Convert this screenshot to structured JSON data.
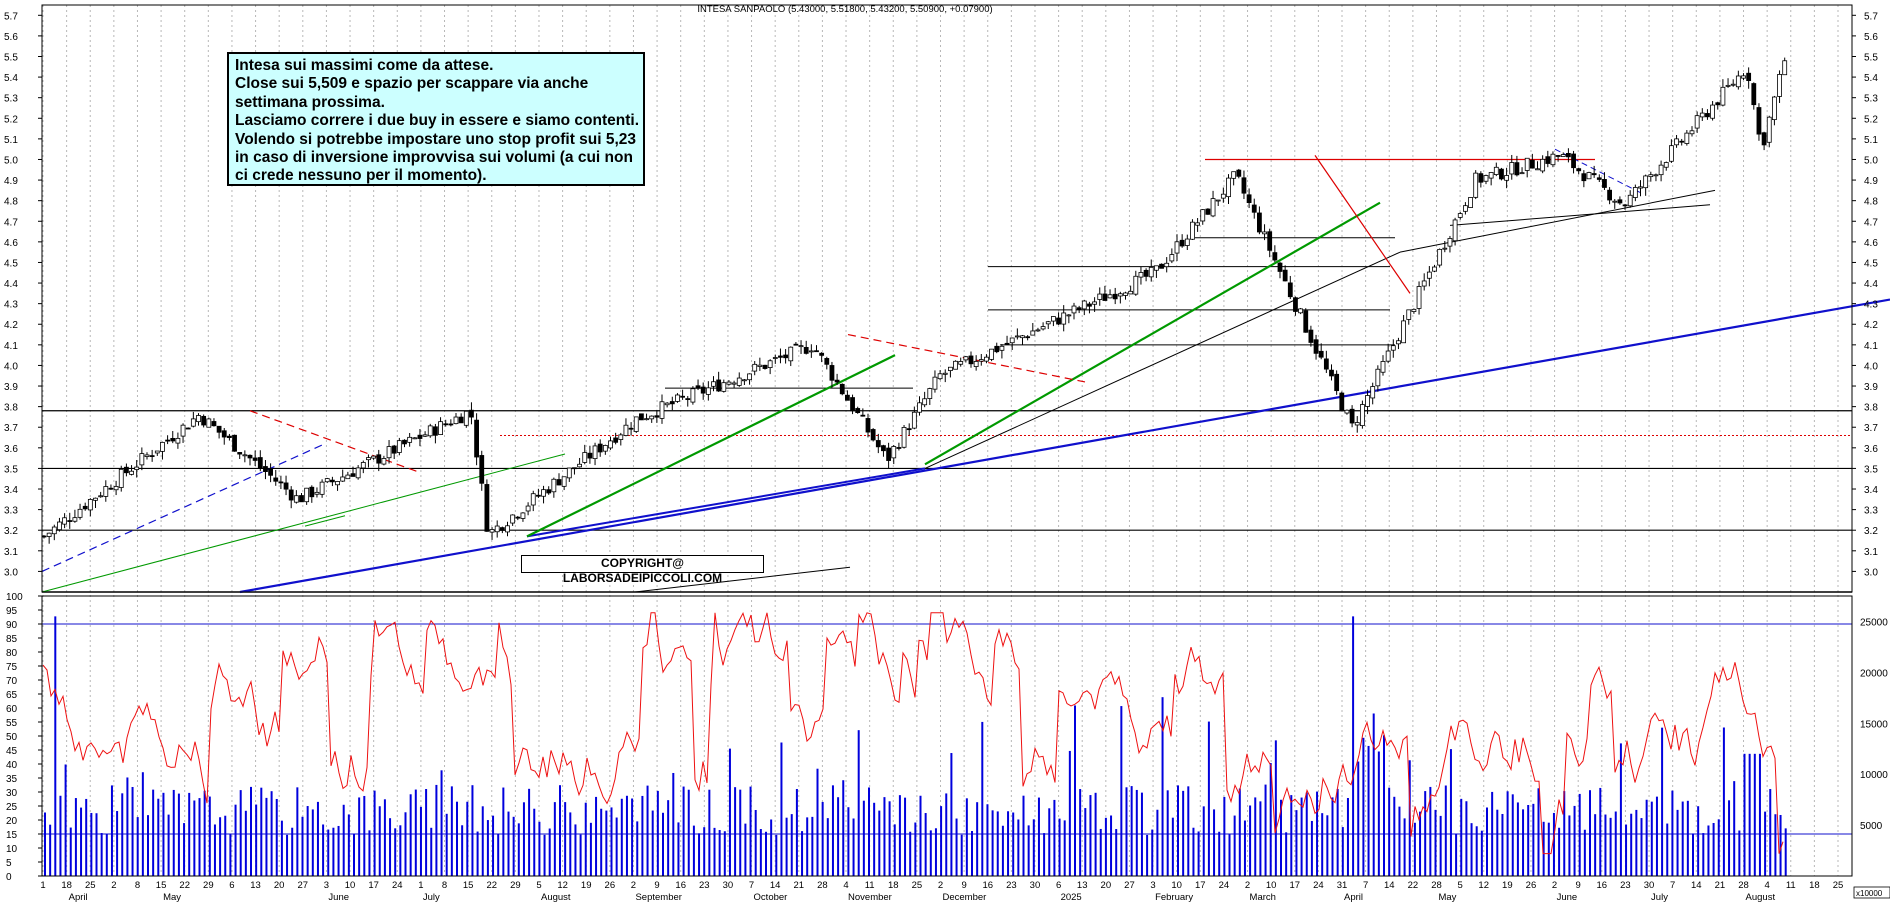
{
  "header": {
    "title": "INTESA SANPAOLO (5.43000, 5.51800, 5.43200, 5.50900, +0.07900)"
  },
  "annotation": {
    "lines": [
      "Intesa sui massimi come da attese.",
      "Close sui 5,509 e spazio per scappare via anche",
      "settimana prossima.",
      "Lasciamo correre i due buy in essere e siamo contenti.",
      "Volendo si potrebbe impostare uno stop profit sui 5,23",
      "in caso di inversione improvvisa sui volumi (a cui non",
      "ci crede nessuno per il momento)."
    ]
  },
  "copyright": "COPYRIGHT@ LABORSADEIPICCOLI.COM",
  "colors": {
    "grid": "#b8b8b8",
    "candle": "#000000",
    "support": "#000000",
    "blue_trend": "#1010cc",
    "green_trend": "#009900",
    "red_trend": "#dd0000",
    "rsi_line": "#ee1111",
    "volume_bar": "#0000dd"
  },
  "chart_data": [
    {
      "type": "candlestick",
      "title": "INTESA SANPAOLO (5.43000, 5.51800, 5.43200, 5.50900, +0.07900)",
      "ylim": [
        2.9,
        5.75
      ],
      "y_ticks": [
        "3.0",
        "3.1",
        "3.2",
        "3.3",
        "3.4",
        "3.5",
        "3.6",
        "3.7",
        "3.8",
        "3.9",
        "4.0",
        "4.1",
        "4.2",
        "4.3",
        "4.4",
        "4.5",
        "4.6",
        "4.7",
        "4.8",
        "4.9",
        "5.0",
        "5.1",
        "5.2",
        "5.3",
        "5.4",
        "5.5",
        "5.6",
        "5.7"
      ],
      "last_ohlc": {
        "open": 5.43,
        "high": 5.518,
        "low": 5.432,
        "close": 5.509,
        "change": 0.079
      },
      "key_points": [
        {
          "date": "2024-04-01",
          "close": 3.17
        },
        {
          "date": "2024-05-15",
          "close": 3.76
        },
        {
          "date": "2024-06-12",
          "close": 3.35
        },
        {
          "date": "2024-07-31",
          "close": 3.78
        },
        {
          "date": "2024-08-05",
          "close": 3.18
        },
        {
          "date": "2024-09-16",
          "close": 3.74
        },
        {
          "date": "2024-11-05",
          "close": 4.1
        },
        {
          "date": "2024-11-26",
          "close": 3.54
        },
        {
          "date": "2024-12-11",
          "close": 3.95
        },
        {
          "date": "2025-02-10",
          "close": 4.45
        },
        {
          "date": "2025-03-05",
          "close": 4.92
        },
        {
          "date": "2025-04-07",
          "close": 3.7
        },
        {
          "date": "2025-05-12",
          "close": 4.9
        },
        {
          "date": "2025-06-05",
          "close": 5.02
        },
        {
          "date": "2025-06-23",
          "close": 4.78
        },
        {
          "date": "2025-07-28",
          "close": 5.45
        },
        {
          "date": "2025-08-01",
          "close": 5.05
        },
        {
          "date": "2025-08-08",
          "close": 5.509
        }
      ]
    },
    {
      "type": "line",
      "ylim": [
        0,
        100
      ],
      "y_ticks": [
        "0",
        "5",
        "10",
        "15",
        "20",
        "25",
        "30",
        "35",
        "40",
        "45",
        "50",
        "55",
        "60",
        "65",
        "70",
        "75",
        "80",
        "85",
        "90",
        "95",
        "100"
      ],
      "reference_lines": [
        15,
        90
      ]
    },
    {
      "type": "bar",
      "right_ticks": [
        "5000",
        "10000",
        "15000",
        "20000",
        "25000"
      ],
      "unit_label": "x10000",
      "reference_lines": [
        5000,
        25000
      ]
    }
  ],
  "x_axis": {
    "days": [
      "1",
      "18",
      "25",
      "2",
      "8",
      "15",
      "22",
      "29",
      "6",
      "13",
      "20",
      "27",
      "3",
      "10",
      "17",
      "24",
      "1",
      "8",
      "15",
      "22",
      "29",
      "5",
      "12",
      "19",
      "26",
      "2",
      "9",
      "16",
      "23",
      "30",
      "7",
      "14",
      "21",
      "28",
      "4",
      "11",
      "18",
      "25",
      "2",
      "9",
      "16",
      "23",
      "30",
      "6",
      "13",
      "20",
      "27",
      "3",
      "10",
      "17",
      "24",
      "2",
      "10",
      "17",
      "24",
      "31",
      "7",
      "14",
      "22",
      "28",
      "5",
      "12",
      "19",
      "26",
      "2",
      "9",
      "16",
      "23",
      "30",
      "7",
      "14",
      "21",
      "28",
      "4",
      "11",
      "18",
      "25"
    ],
    "months": [
      "April",
      "May",
      "June",
      "July",
      "August",
      "September",
      "October",
      "November",
      "December",
      "2025",
      "February",
      "March",
      "April",
      "May",
      "June",
      "July",
      "August"
    ]
  }
}
